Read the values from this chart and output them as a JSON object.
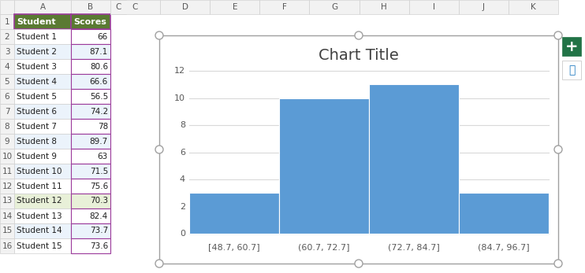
{
  "scores": [
    66,
    87.1,
    80.6,
    66.6,
    56.5,
    74.2,
    78,
    89.7,
    63,
    71.5,
    75.6,
    70.3,
    82.4,
    73.7,
    73.6
  ],
  "bin_labels": [
    "[48.7, 60.7]",
    "(60.7, 72.7]",
    "(72.7, 84.7]",
    "(84.7, 96.7]"
  ],
  "bin_counts": [
    3,
    10,
    11,
    3
  ],
  "bar_color": "#5B9BD5",
  "title": "Chart Title",
  "title_fontsize": 14,
  "yticks": [
    0,
    2,
    4,
    6,
    8,
    10,
    12
  ],
  "ylim": [
    0,
    12.8
  ],
  "grid_color": "#D9D9D9",
  "chart_area_bg": "#FFFFFF",
  "outer_bg": "#FFFFFF",
  "col_headers": [
    "",
    "A",
    "B",
    "C",
    "D",
    "E",
    "F",
    "G",
    "H",
    "I",
    "J",
    "K"
  ],
  "col_header_bg": "#F2F2F2",
  "header_row_bg_green": "#5A7A32",
  "header_row_text_color": "#FFFFFF",
  "students": [
    "Student 1",
    "Student 2",
    "Student 3",
    "Student 4",
    "Student 5",
    "Student 6",
    "Student 7",
    "Student 8",
    "Student 9",
    "Student 10",
    "Student 11",
    "Student 12",
    "Student 13",
    "Student 14",
    "Student 15"
  ],
  "student_scores": [
    66,
    87.1,
    80.6,
    66.6,
    56.5,
    74.2,
    78,
    89.7,
    63,
    71.5,
    75.6,
    70.3,
    82.4,
    73.7,
    73.6
  ],
  "row12_bg": "#E8F0D8",
  "cell_border_color": "#D0D0D0",
  "col_b_border_color": "#9B3A9B",
  "excel_bg": "#FFFFFF",
  "row_header_bg": "#F2F2F2",
  "handle_color": "#A0A0A0",
  "plus_btn_color": "#217346",
  "chart_border_color": "#A0A0A0"
}
